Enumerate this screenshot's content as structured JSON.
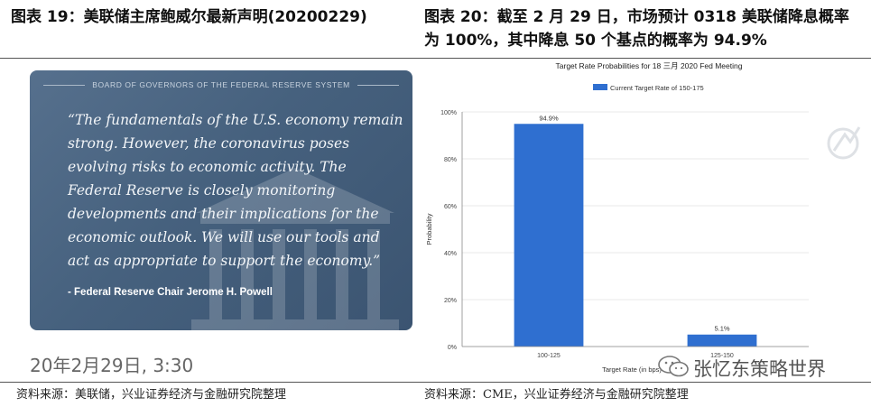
{
  "left_panel": {
    "title": "图表 19：美联储主席鲍威尔最新声明(20200229)",
    "card_header": "BOARD OF GOVERNORS OF THE FEDERAL RESERVE SYSTEM",
    "quote": "“The fundamentals of the U.S. economy remain strong. However, the coronavirus poses evolving risks to economic activity. The Federal Reserve is closely monitoring developments and their implications for the economic outlook. We will use our tools and act as appropriate to support the economy.”",
    "attribution": "- Federal Reserve Chair Jerome H. Powell",
    "timestamp": "20年2月29日, 3:30",
    "source": "资料来源：美联储，兴业证券经济与金融研究院整理"
  },
  "right_panel": {
    "title": "图表 20：截至 2 月 29 日，市场预计 0318 美联储降息概率为 100%，其中降息 50 个基点的概率为 94.9%",
    "source": "资料来源：CME，兴业证券经济与金融研究院整理"
  },
  "watermark": "张忆东策略世界",
  "chart_data": {
    "type": "bar",
    "title": "Target Rate Probabilities for 18 三月 2020 Fed Meeting",
    "legend": "Current Target Rate of 150-175",
    "legend_position": "top",
    "categories": [
      "100-125",
      "125-150"
    ],
    "values": [
      94.9,
      5.1
    ],
    "data_labels": [
      "94.9%",
      "5.1%"
    ],
    "ylabel": "Probability",
    "xlabel": "Target Rate (in bps)",
    "ylim": [
      0,
      100
    ],
    "yticks": [
      "0%",
      "20%",
      "40%",
      "60%",
      "80%",
      "100%"
    ],
    "grid": true,
    "bar_color": "#2f6fd0"
  }
}
